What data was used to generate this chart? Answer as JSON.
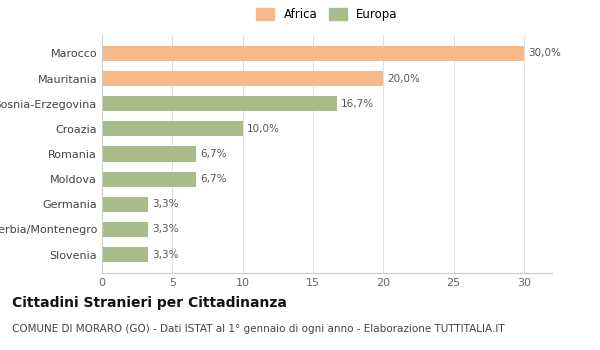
{
  "categories": [
    "Slovenia",
    "Serbia/Montenegro",
    "Germania",
    "Moldova",
    "Romania",
    "Croazia",
    "Bosnia-Erzegovina",
    "Mauritania",
    "Marocco"
  ],
  "values": [
    3.3,
    3.3,
    3.3,
    6.7,
    6.7,
    10.0,
    16.7,
    20.0,
    30.0
  ],
  "labels": [
    "3,3%",
    "3,3%",
    "3,3%",
    "6,7%",
    "6,7%",
    "10,0%",
    "16,7%",
    "20,0%",
    "30,0%"
  ],
  "colors": [
    "#a8bc8a",
    "#a8bc8a",
    "#a8bc8a",
    "#a8bc8a",
    "#a8bc8a",
    "#a8bc8a",
    "#a8bc8a",
    "#f5b98a",
    "#f5b98a"
  ],
  "legend_labels": [
    "Africa",
    "Europa"
  ],
  "legend_colors": [
    "#f5b98a",
    "#a8bc8a"
  ],
  "xlim": [
    0,
    32
  ],
  "xticks": [
    0,
    5,
    10,
    15,
    20,
    25,
    30
  ],
  "title": "Cittadini Stranieri per Cittadinanza",
  "subtitle": "COMUNE DI MORARO (GO) - Dati ISTAT al 1° gennaio di ogni anno - Elaborazione TUTTITALIA.IT",
  "background_color": "#ffffff",
  "bar_edge_color": "none",
  "title_fontsize": 10,
  "subtitle_fontsize": 7.5,
  "label_fontsize": 7.5,
  "tick_fontsize": 8,
  "legend_fontsize": 8.5
}
